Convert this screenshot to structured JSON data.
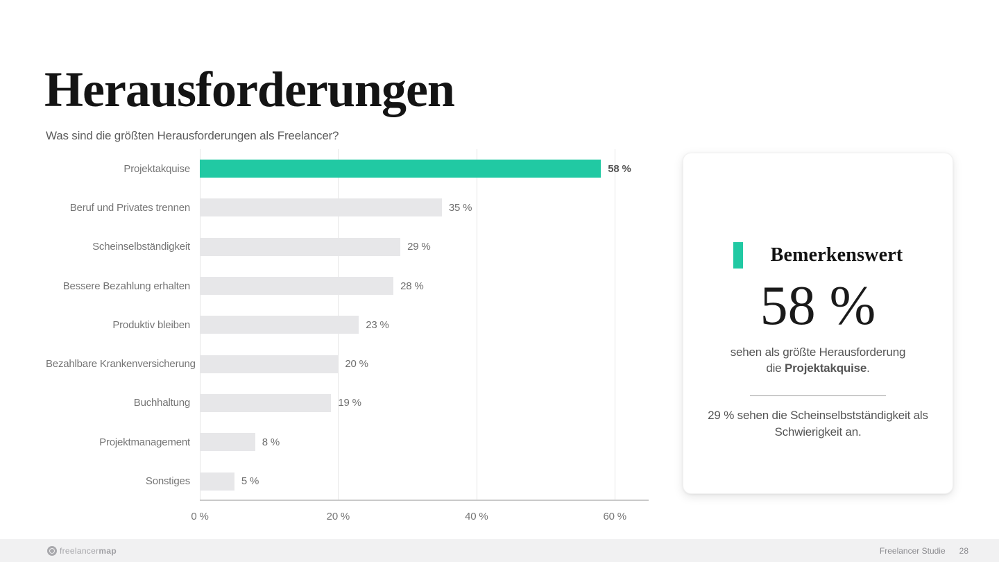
{
  "header": {
    "title": "Herausforderungen",
    "subtitle": "Was sind die größten Herausforderungen als Freelancer?"
  },
  "chart_data": {
    "type": "bar",
    "orientation": "horizontal",
    "title": "",
    "xlabel": "",
    "ylabel": "",
    "categories": [
      "Projektakquise",
      "Beruf und Privates trennen",
      "Scheinselbständigkeit",
      "Bessere Bezahlung erhalten",
      "Produktiv bleiben",
      "Bezahlbare Krankenversicherung",
      "Buchhaltung",
      "Projektmanagement",
      "Sonstiges"
    ],
    "values": [
      58,
      35,
      29,
      28,
      23,
      20,
      19,
      8,
      5
    ],
    "value_labels": [
      "58 %",
      "35 %",
      "29 %",
      "28 %",
      "23 %",
      "20 %",
      "19 %",
      "8 %",
      "5 %"
    ],
    "highlight_index": 0,
    "bar_color_highlight": "#21c9a3",
    "bar_color_default": "#e7e7e9",
    "xlim": [
      0,
      64.9
    ],
    "x_ticks": [
      {
        "value": 0,
        "label": "0 %"
      },
      {
        "value": 20,
        "label": "20 %"
      },
      {
        "value": 40,
        "label": "40 %"
      },
      {
        "value": 60,
        "label": "60 %"
      }
    ],
    "grid": true,
    "legend": false
  },
  "card": {
    "heading": "Bemerkenswert",
    "big_number": "58 %",
    "line1": "sehen als größte Herausforderung",
    "line2_prefix": "die ",
    "line2_bold": "Projektakquise",
    "line2_suffix": ".",
    "note_line1": "29 % sehen die Scheinselbstständigkeit als",
    "note_line2": "Schwierigkeit an."
  },
  "footer": {
    "logo_light": "freelancer",
    "logo_bold": "map",
    "right_label": "Freelancer Studie",
    "page_number": "28"
  },
  "colors": {
    "accent_green": "#21c9a3",
    "bar_gray": "#e7e7e9",
    "footer_bg": "#f1f1f2"
  }
}
